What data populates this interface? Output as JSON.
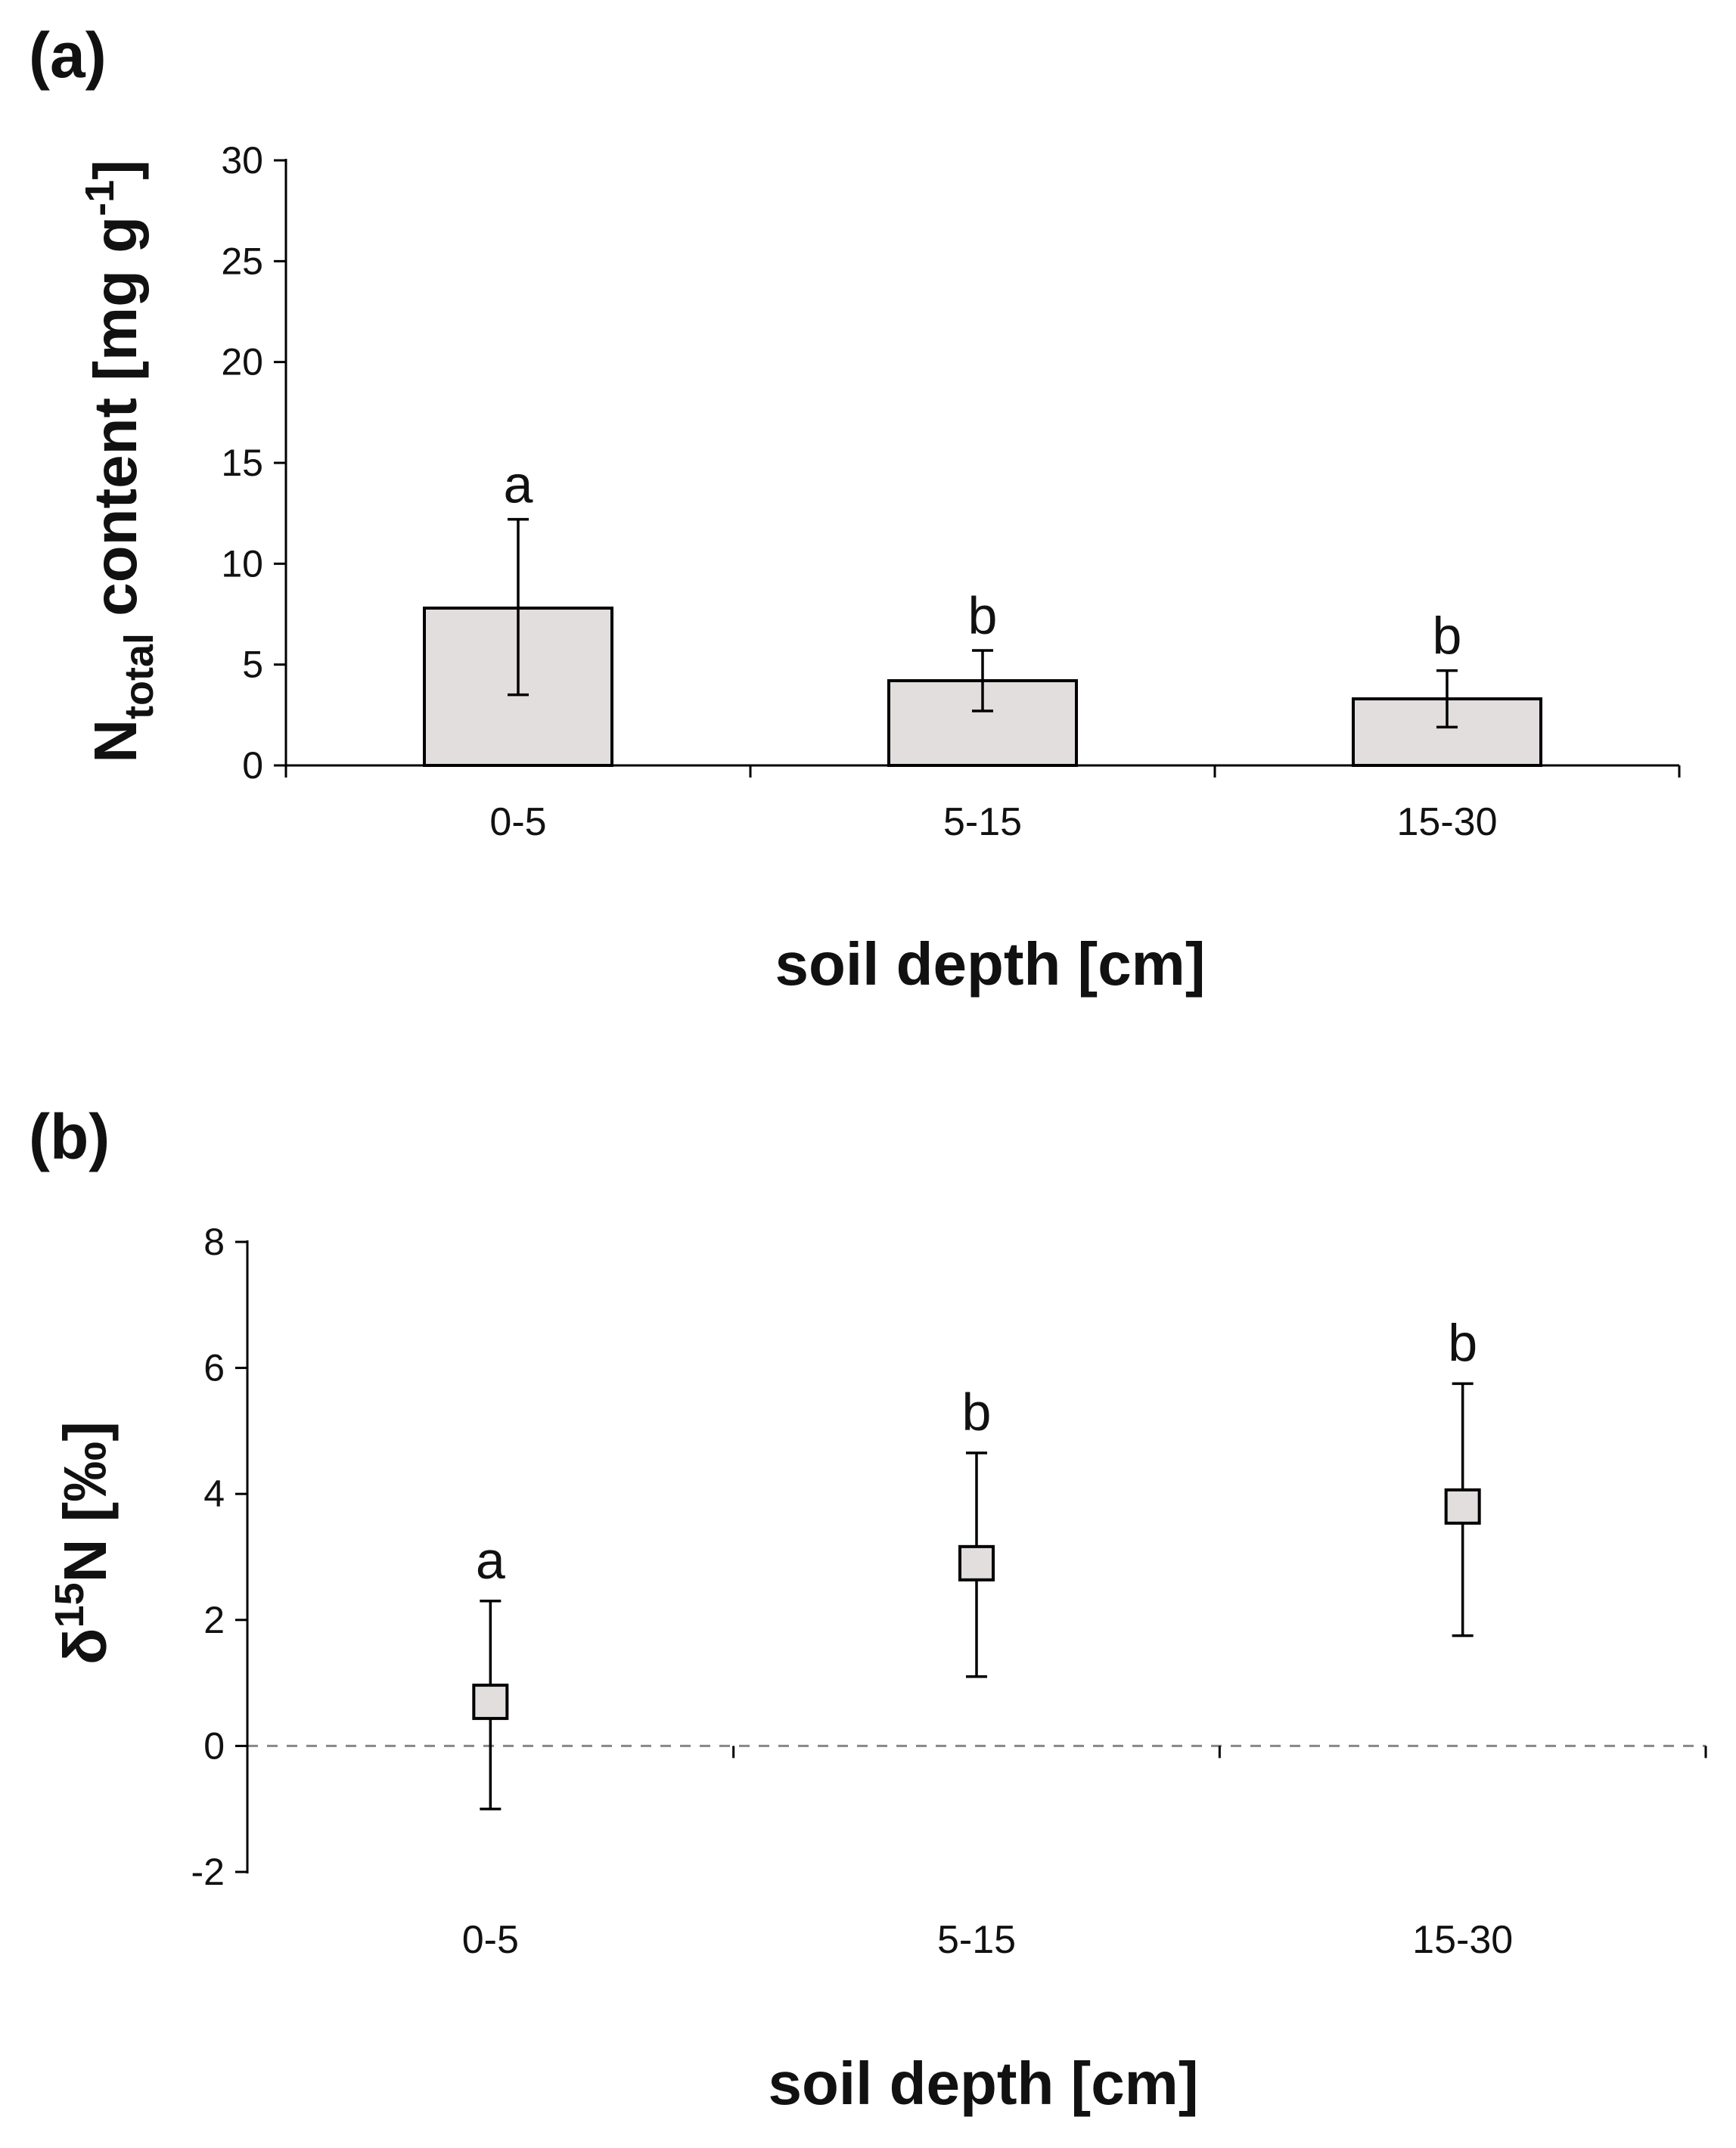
{
  "colors": {
    "bar_fill": "#e1dedd",
    "marker_fill": "#e1dedd",
    "axis": "#000000",
    "zero_line": "#888888",
    "text": "#111111"
  },
  "chart_data": [
    {
      "panel_label": "(a)",
      "type": "bar",
      "categories": [
        "0-5",
        "5-15",
        "15-30"
      ],
      "values": [
        7.8,
        4.2,
        3.3
      ],
      "error_low": [
        3.5,
        2.7,
        1.9
      ],
      "error_high": [
        12.2,
        5.7,
        4.7
      ],
      "significance": [
        "a",
        "b",
        "b"
      ],
      "xlabel": "soil depth [cm]",
      "ylabel_main": "N",
      "ylabel_sub": "total",
      "ylabel_rest": " content [mg g",
      "ylabel_sup": "-1",
      "ylabel_close": "]",
      "ylim": [
        0,
        30
      ],
      "yticks": [
        0,
        5,
        10,
        15,
        20,
        25,
        30
      ],
      "ytick_labels": [
        "0",
        "5",
        "10",
        "15",
        "20",
        "25",
        "30"
      ]
    },
    {
      "panel_label": "(b)",
      "type": "scatter",
      "categories": [
        "0-5",
        "5-15",
        "15-30"
      ],
      "values": [
        0.7,
        2.9,
        3.8
      ],
      "error_low": [
        -1.0,
        1.1,
        1.75
      ],
      "error_high": [
        2.3,
        4.65,
        5.75
      ],
      "significance": [
        "a",
        "b",
        "b"
      ],
      "xlabel": "soil depth [cm]",
      "ylabel_pre": "δ",
      "ylabel_sup": "15",
      "ylabel_rest": "N [‰]",
      "ylim": [
        -2,
        8
      ],
      "yticks": [
        -2,
        0,
        2,
        4,
        6,
        8
      ],
      "ytick_labels": [
        "-2",
        "0",
        "2",
        "4",
        "6",
        "8"
      ],
      "reference_line_y": 0
    }
  ]
}
